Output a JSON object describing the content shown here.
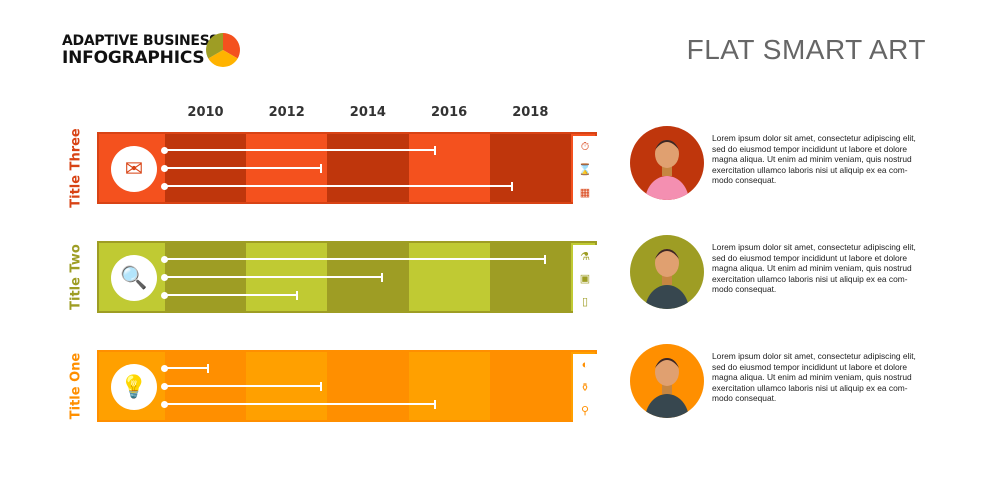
{
  "header": {
    "logo_line1": "ADAPTIVE BUSINESS",
    "logo_line2": "INFOGRAPHICS",
    "title": "FLAT SMART ART",
    "logo_colors": [
      "#9E9D24",
      "#F4511E",
      "#FFB300"
    ]
  },
  "years": [
    "2010",
    "2012",
    "2014",
    "2016",
    "2018"
  ],
  "rows": [
    {
      "title": "Title Three",
      "color": "#D84315",
      "light": "#F4511E",
      "dark": "#BF360C",
      "main_icon": "envelope-icon",
      "line_end_years": [
        2015.6,
        2012.8,
        2017.5
      ],
      "side_icons": [
        "stopwatch-icon",
        "hourglass-icon",
        "calendar-icon"
      ],
      "text": "Lorem ipsum dolor sit amet, consectetur adipiscing elit, sed do eiusmod tempor incididunt ut labore et dolore magna aliqua. Ut enim ad minim veniam, quis nostrud exercitation ullamco laboris nisi ut aliquip ex ea com-modo consequat.",
      "avatar_bg": "#BF360C"
    },
    {
      "title": "Title Two",
      "color": "#9E9D24",
      "light": "#C0CA33",
      "dark": "#9E9D24",
      "main_icon": "magnifier-icon",
      "line_end_years": [
        2018.3,
        2014.3,
        2012.2
      ],
      "side_icons": [
        "flask-icon",
        "monitor-icon",
        "tablet-icon"
      ],
      "text": "Lorem ipsum dolor sit amet, consectetur adipiscing elit, sed do eiusmod tempor incididunt ut labore et dolore magna aliqua. Ut enim ad minim veniam, quis nostrud exercitation ullamco laboris nisi ut aliquip ex ea com-modo consequat.",
      "avatar_bg": "#9E9D24"
    },
    {
      "title": "Title One",
      "color": "#FF8F00",
      "light": "#FFA000",
      "dark": "#FF8F00",
      "main_icon": "lightbulb-icon",
      "line_end_years": [
        2010.0,
        2012.8,
        2015.6
      ],
      "side_icons": [
        "browser-icon",
        "test-tube-icon",
        "antenna-icon"
      ],
      "text": "Lorem ipsum dolor sit amet, consectetur adipiscing elit, sed do eiusmod tempor incididunt ut labore et dolore magna aliqua. Ut enim ad minim veniam, quis nostrud exercitation ullamco laboris nisi ut aliquip ex ea com-modo consequat.",
      "avatar_bg": "#FF8F00"
    }
  ]
}
